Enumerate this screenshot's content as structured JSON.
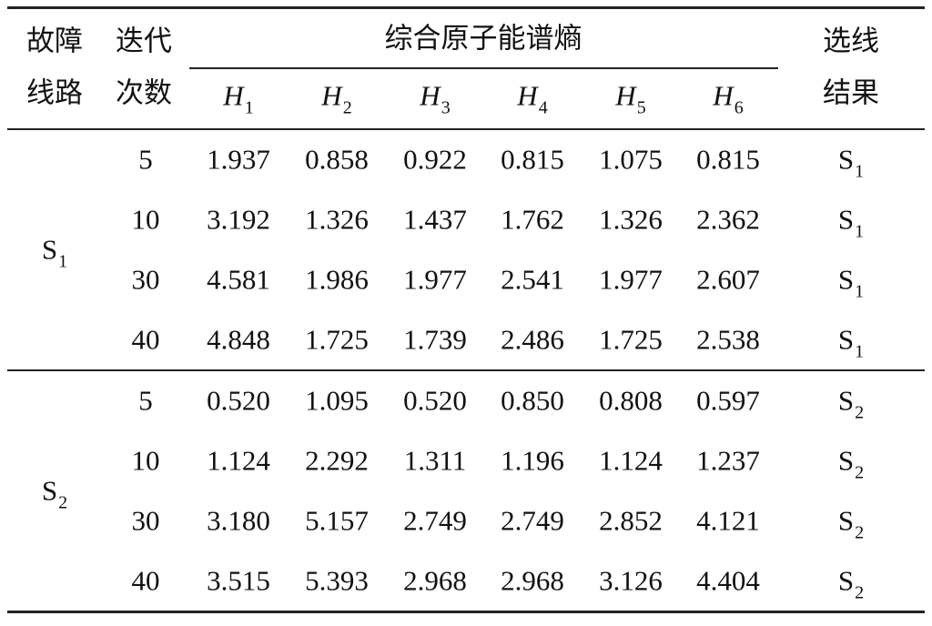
{
  "header": {
    "fault_line": [
      "故障",
      "线路"
    ],
    "iterations": [
      "迭代",
      "次数"
    ],
    "entropy_title": "综合原子能谱熵",
    "entropy_columns": [
      {
        "symbol": "H",
        "sub": "1"
      },
      {
        "symbol": "H",
        "sub": "2"
      },
      {
        "symbol": "H",
        "sub": "3"
      },
      {
        "symbol": "H",
        "sub": "4"
      },
      {
        "symbol": "H",
        "sub": "5"
      },
      {
        "symbol": "H",
        "sub": "6"
      }
    ],
    "result": [
      "选线",
      "结果"
    ]
  },
  "groups": [
    {
      "line": {
        "main": "S",
        "sub": "1"
      },
      "rows": [
        {
          "iterations": "5",
          "values": [
            "1.937",
            "0.858",
            "0.922",
            "0.815",
            "1.075",
            "0.815"
          ],
          "result": {
            "main": "S",
            "sub": "1"
          }
        },
        {
          "iterations": "10",
          "values": [
            "3.192",
            "1.326",
            "1.437",
            "1.762",
            "1.326",
            "2.362"
          ],
          "result": {
            "main": "S",
            "sub": "1"
          }
        },
        {
          "iterations": "30",
          "values": [
            "4.581",
            "1.986",
            "1.977",
            "2.541",
            "1.977",
            "2.607"
          ],
          "result": {
            "main": "S",
            "sub": "1"
          }
        },
        {
          "iterations": "40",
          "values": [
            "4.848",
            "1.725",
            "1.739",
            "2.486",
            "1.725",
            "2.538"
          ],
          "result": {
            "main": "S",
            "sub": "1"
          }
        }
      ]
    },
    {
      "line": {
        "main": "S",
        "sub": "2"
      },
      "rows": [
        {
          "iterations": "5",
          "values": [
            "0.520",
            "1.095",
            "0.520",
            "0.850",
            "0.808",
            "0.597"
          ],
          "result": {
            "main": "S",
            "sub": "2"
          }
        },
        {
          "iterations": "10",
          "values": [
            "1.124",
            "2.292",
            "1.311",
            "1.196",
            "1.124",
            "1.237"
          ],
          "result": {
            "main": "S",
            "sub": "2"
          }
        },
        {
          "iterations": "30",
          "values": [
            "3.180",
            "5.157",
            "2.749",
            "2.749",
            "2.852",
            "4.121"
          ],
          "result": {
            "main": "S",
            "sub": "2"
          }
        },
        {
          "iterations": "40",
          "values": [
            "3.515",
            "5.393",
            "2.968",
            "2.968",
            "3.126",
            "4.404"
          ],
          "result": {
            "main": "S",
            "sub": "2"
          }
        }
      ]
    }
  ]
}
